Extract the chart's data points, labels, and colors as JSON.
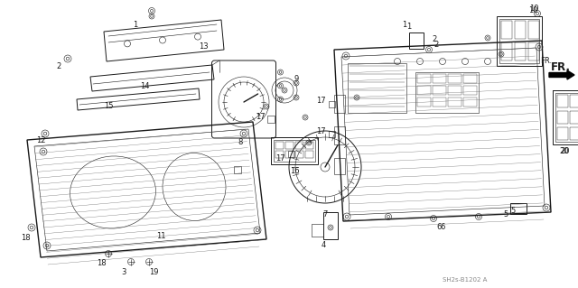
{
  "background_color": "#ffffff",
  "diagram_color": "#1a1a1a",
  "watermark": "SH2s-B1202 A",
  "fr_label": "FR.",
  "font_size_labels": 6.0,
  "font_size_watermark": 5.0,
  "font_size_fr": 7.5,
  "figsize": [
    6.4,
    3.19
  ],
  "dpi": 100,
  "xlim": [
    0,
    640
  ],
  "ylim": [
    0,
    319
  ]
}
